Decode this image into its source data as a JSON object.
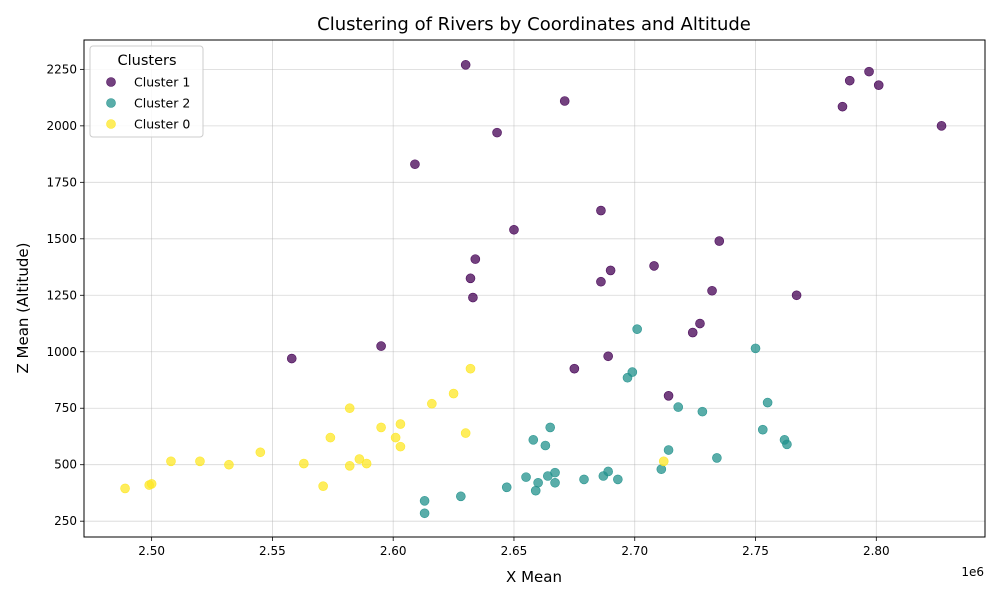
{
  "chart_data": {
    "type": "scatter",
    "title": "Clustering of Rivers by Coordinates and Altitude",
    "xlabel": "X Mean",
    "ylabel": "Z Mean (Altitude)",
    "x_offset_label": "1e6",
    "xlim": [
      2472000,
      2845000
    ],
    "ylim": [
      180,
      2380
    ],
    "x_ticks": [
      2500000,
      2550000,
      2600000,
      2650000,
      2700000,
      2750000,
      2800000
    ],
    "x_tick_labels": [
      "2.50",
      "2.55",
      "2.60",
      "2.65",
      "2.70",
      "2.75",
      "2.80"
    ],
    "y_ticks": [
      250,
      500,
      750,
      1000,
      1250,
      1500,
      1750,
      2000,
      2250
    ],
    "y_tick_labels": [
      "250",
      "500",
      "750",
      "1000",
      "1250",
      "1500",
      "1750",
      "2000",
      "2250"
    ],
    "grid": true,
    "legend": {
      "title": "Clusters",
      "position": "top-left"
    },
    "series": [
      {
        "name": "Cluster 1",
        "color": "#440154",
        "points": [
          [
            2630000,
            2270
          ],
          [
            2671000,
            2110
          ],
          [
            2643000,
            1970
          ],
          [
            2609000,
            1830
          ],
          [
            2797000,
            2240
          ],
          [
            2789000,
            2200
          ],
          [
            2801000,
            2180
          ],
          [
            2786000,
            2085
          ],
          [
            2827000,
            2000
          ],
          [
            2686000,
            1625
          ],
          [
            2650000,
            1540
          ],
          [
            2735000,
            1490
          ],
          [
            2634000,
            1410
          ],
          [
            2708000,
            1380
          ],
          [
            2690000,
            1360
          ],
          [
            2632000,
            1325
          ],
          [
            2686000,
            1310
          ],
          [
            2732000,
            1270
          ],
          [
            2633000,
            1240
          ],
          [
            2767000,
            1250
          ],
          [
            2727000,
            1125
          ],
          [
            2724000,
            1085
          ],
          [
            2595000,
            1025
          ],
          [
            2558000,
            970
          ],
          [
            2689000,
            980
          ],
          [
            2675000,
            925
          ],
          [
            2714000,
            805
          ]
        ]
      },
      {
        "name": "Cluster 2",
        "color": "#21918c",
        "points": [
          [
            2701000,
            1100
          ],
          [
            2750000,
            1015
          ],
          [
            2699000,
            910
          ],
          [
            2697000,
            885
          ],
          [
            2755000,
            775
          ],
          [
            2718000,
            755
          ],
          [
            2728000,
            735
          ],
          [
            2665000,
            665
          ],
          [
            2753000,
            655
          ],
          [
            2762000,
            610
          ],
          [
            2658000,
            610
          ],
          [
            2763000,
            590
          ],
          [
            2663000,
            585
          ],
          [
            2714000,
            565
          ],
          [
            2734000,
            530
          ],
          [
            2711000,
            480
          ],
          [
            2667000,
            465
          ],
          [
            2689000,
            470
          ],
          [
            2664000,
            450
          ],
          [
            2655000,
            445
          ],
          [
            2687000,
            450
          ],
          [
            2679000,
            435
          ],
          [
            2693000,
            435
          ],
          [
            2660000,
            420
          ],
          [
            2667000,
            420
          ],
          [
            2647000,
            400
          ],
          [
            2659000,
            385
          ],
          [
            2628000,
            360
          ],
          [
            2613000,
            340
          ],
          [
            2613000,
            285
          ]
        ]
      },
      {
        "name": "Cluster 0",
        "color": "#fde725",
        "points": [
          [
            2632000,
            925
          ],
          [
            2625000,
            815
          ],
          [
            2616000,
            770
          ],
          [
            2582000,
            750
          ],
          [
            2603000,
            680
          ],
          [
            2595000,
            665
          ],
          [
            2630000,
            640
          ],
          [
            2574000,
            620
          ],
          [
            2601000,
            620
          ],
          [
            2603000,
            580
          ],
          [
            2545000,
            555
          ],
          [
            2586000,
            525
          ],
          [
            2508000,
            515
          ],
          [
            2520000,
            515
          ],
          [
            2712000,
            515
          ],
          [
            2563000,
            505
          ],
          [
            2589000,
            505
          ],
          [
            2532000,
            500
          ],
          [
            2582000,
            495
          ],
          [
            2499000,
            410
          ],
          [
            2500000,
            415
          ],
          [
            2571000,
            405
          ],
          [
            2489000,
            395
          ]
        ]
      }
    ]
  }
}
